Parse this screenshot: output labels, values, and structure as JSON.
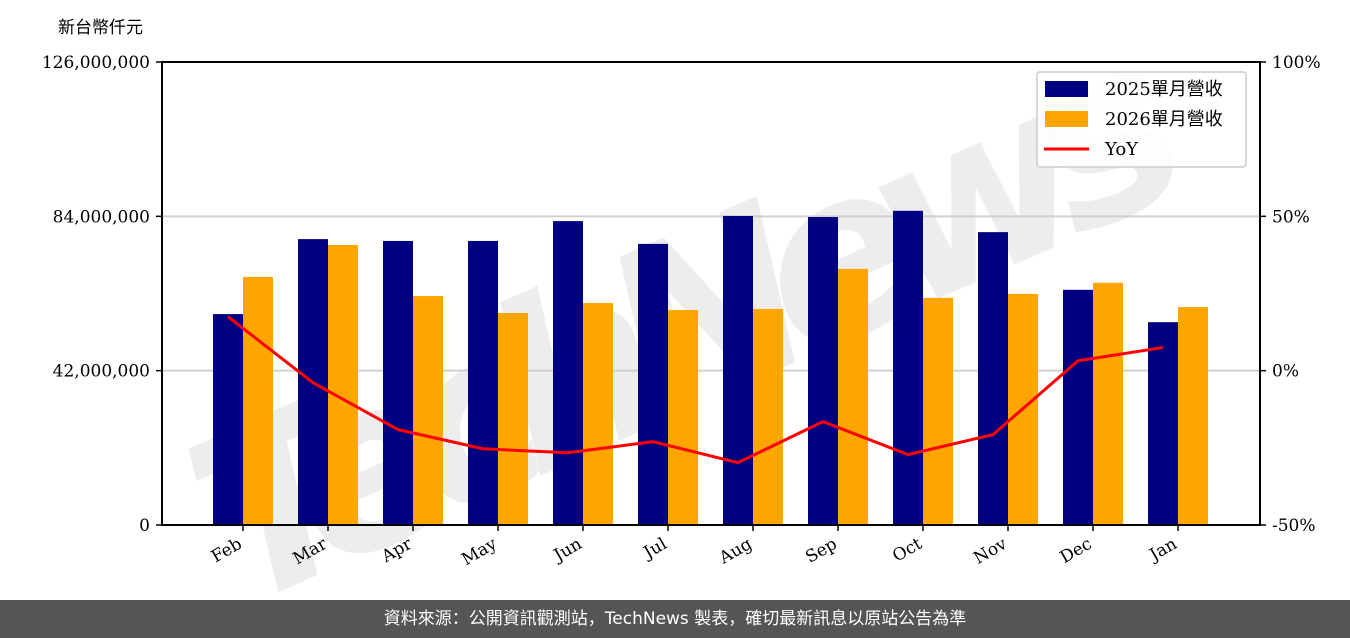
{
  "chart_data": {
    "type": "bar",
    "title": "",
    "ylabel": "新台幣仟元",
    "xlabel": "",
    "categories": [
      "Feb",
      "Mar",
      "Apr",
      "May",
      "Jun",
      "Jul",
      "Aug",
      "Sep",
      "Oct",
      "Nov",
      "Dec",
      "Jan"
    ],
    "series": [
      {
        "name": "2025單月營收",
        "type": "bar",
        "axis": "left",
        "color": "#000080",
        "values": [
          57400000,
          77800000,
          77300000,
          77300000,
          82700000,
          76500000,
          84100000,
          83800000,
          85500000,
          79700000,
          64000000,
          55200000
        ]
      },
      {
        "name": "2026單月營收",
        "type": "bar",
        "axis": "left",
        "color": "#FFA500",
        "values": [
          67500000,
          76200000,
          62300000,
          57700000,
          60400000,
          58500000,
          58800000,
          69700000,
          61800000,
          62900000,
          65900000,
          59300000
        ]
      },
      {
        "name": "YoY",
        "type": "line",
        "axis": "right",
        "color": "#FF0000",
        "unit": "%",
        "values": [
          17.5,
          -3.9,
          -19.1,
          -25.3,
          -26.6,
          -23.0,
          -29.8,
          -16.5,
          -27.2,
          -20.7,
          3.2,
          7.5
        ]
      }
    ],
    "ylim": [
      0,
      126000000
    ],
    "ylim_right": [
      -50,
      100
    ],
    "yticks": [
      "0",
      "42,000,000",
      "84,000,000",
      "126,000,000"
    ],
    "yticks_right": [
      "-50%",
      "0%",
      "50%",
      "100%"
    ],
    "grid": "horizontal",
    "legend_position": "upper right",
    "watermark": "TechNews"
  },
  "unit_label": "新台幣仟元",
  "legend": [
    {
      "label": "2025單月營收",
      "kind": "bar",
      "color": "#000080"
    },
    {
      "label": "2026單月營收",
      "kind": "bar",
      "color": "#FFA500"
    },
    {
      "label": "YoY",
      "kind": "line",
      "color": "#FF0000"
    }
  ],
  "footer": {
    "text": "資料來源：公開資訊觀測站，TechNews 製表，確切最新訊息以原站公告為準"
  }
}
